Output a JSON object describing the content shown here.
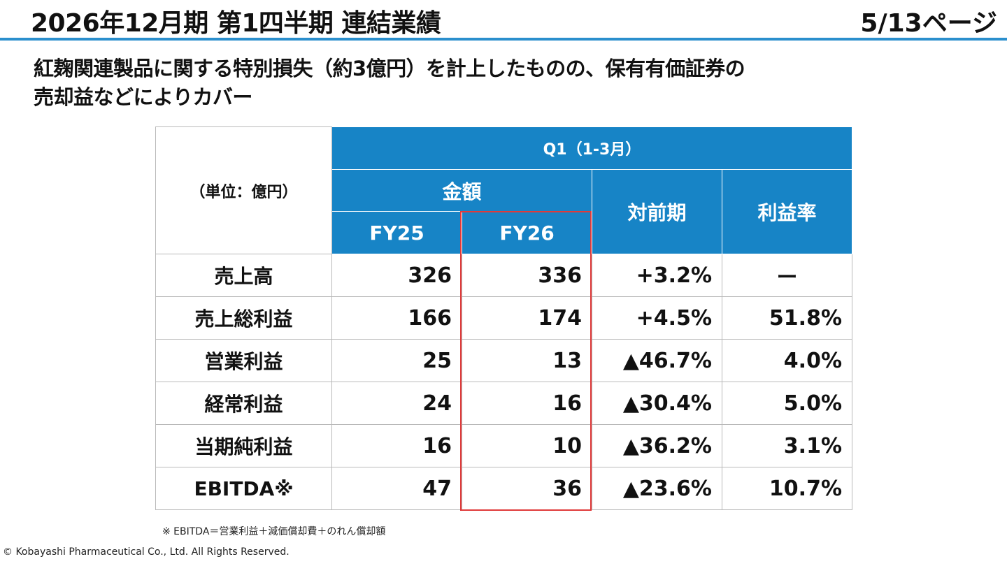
{
  "header": {
    "title": "2026年12月期 第1四半期 連結業績",
    "page": "5/13ページ"
  },
  "subtitle": {
    "line1": "紅麹関連製品に関する特別損失（約3億円）を計上したものの、保有有価証券の",
    "line2": "売却益などによりカバー"
  },
  "table": {
    "unit": "（単位：億円）",
    "period": "Q1（1-3月）",
    "amount_header": "金額",
    "fy25": "FY25",
    "fy26": "FY26",
    "yoy_header": "対前期",
    "margin_header": "利益率",
    "highlight_color": "#e03a3a",
    "header_color": "#1784c6",
    "rows": [
      {
        "label": "売上高",
        "fy25": "326",
        "fy26": "336",
        "yoy": "+3.2%",
        "margin": "ー"
      },
      {
        "label": "売上総利益",
        "fy25": "166",
        "fy26": "174",
        "yoy": "+4.5%",
        "margin": "51.8%"
      },
      {
        "label": "営業利益",
        "fy25": "25",
        "fy26": "13",
        "yoy": "▲46.7%",
        "margin": "4.0%"
      },
      {
        "label": "経常利益",
        "fy25": "24",
        "fy26": "16",
        "yoy": "▲30.4%",
        "margin": "5.0%"
      },
      {
        "label": "当期純利益",
        "fy25": "16",
        "fy26": "10",
        "yoy": "▲36.2%",
        "margin": "3.1%"
      },
      {
        "label": "EBITDA※",
        "fy25": "47",
        "fy26": "36",
        "yoy": "▲23.6%",
        "margin": "10.7%"
      }
    ]
  },
  "footnote": "※ EBITDA＝営業利益＋減価償却費＋のれん償却額",
  "copyright": "© Kobayashi Pharmaceutical Co., Ltd. All Rights Reserved."
}
